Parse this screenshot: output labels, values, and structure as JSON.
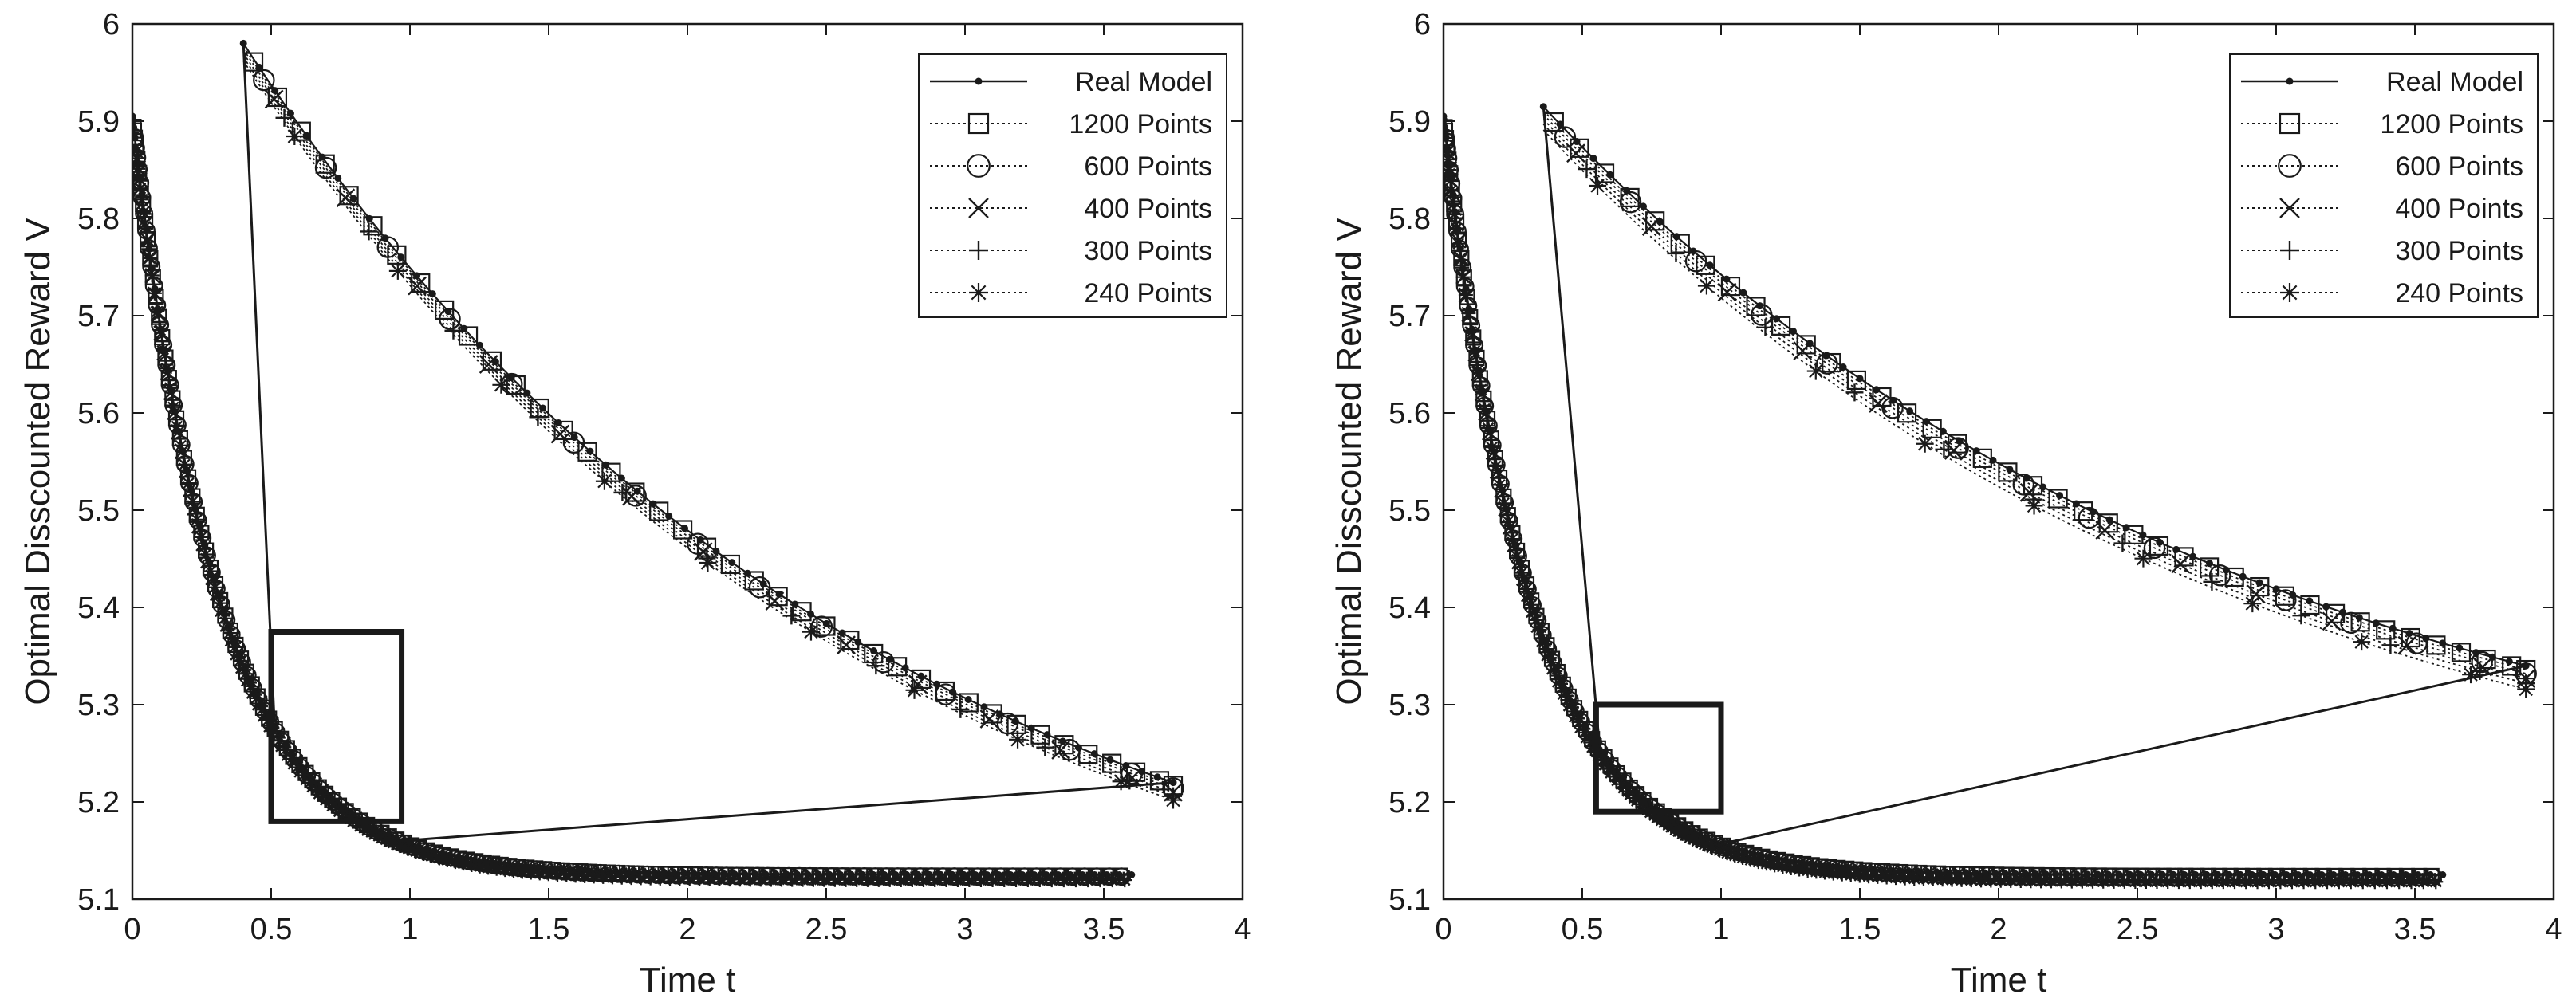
{
  "chart_data": [
    {
      "type": "line",
      "xlabel": "Time t",
      "ylabel": "Optimal Disscounted Reward V",
      "xlim": [
        0,
        4
      ],
      "ylim": [
        5.1,
        6
      ],
      "xticks": [
        "0",
        "0.5",
        "1",
        "1.5",
        "2",
        "2.5",
        "3",
        "3.5",
        "4"
      ],
      "yticks": [
        "5.1",
        "5.2",
        "5.3",
        "5.4",
        "5.5",
        "5.6",
        "5.7",
        "5.8",
        "5.9",
        "6"
      ],
      "legend_position": "top-right",
      "legend": [
        "Real Model",
        "1200 Points",
        "600 Points",
        "400 Points",
        "300 Points",
        "240 Points"
      ],
      "curve_model": {
        "asymptote": 5.125,
        "amplitude": 0.78,
        "rate": 3.2,
        "x_end": 3.6
      },
      "zoom_box": {
        "x": [
          0.5,
          0.97
        ],
        "y": [
          5.18,
          5.375
        ]
      },
      "inset": {
        "x": [
          0.4,
          3.75
        ],
        "y": [
          5.22,
          5.98
        ],
        "offsets": [
          0.0,
          -0.003,
          -0.006,
          -0.01,
          -0.014,
          -0.018
        ]
      }
    },
    {
      "type": "line",
      "xlabel": "Time t",
      "ylabel": "Optimal Disscounted Reward V",
      "xlim": [
        0,
        4
      ],
      "ylim": [
        5.1,
        6
      ],
      "xticks": [
        "0",
        "0.5",
        "1",
        "1.5",
        "2",
        "2.5",
        "3",
        "3.5",
        "4"
      ],
      "yticks": [
        "5.1",
        "5.2",
        "5.3",
        "5.4",
        "5.5",
        "5.6",
        "5.7",
        "5.8",
        "5.9",
        "6"
      ],
      "legend_position": "top-right",
      "legend": [
        "Real Model",
        "1200 Points",
        "600 Points",
        "400 Points",
        "300 Points",
        "240 Points"
      ],
      "curve_model": {
        "asymptote": 5.125,
        "amplitude": 0.78,
        "rate": 3.2,
        "x_end": 3.6
      },
      "zoom_box": {
        "x": [
          0.55,
          1.0
        ],
        "y": [
          5.19,
          5.3
        ]
      },
      "inset": {
        "x": [
          0.36,
          3.9
        ],
        "y": [
          5.34,
          5.915
        ],
        "offsets": [
          0.0,
          -0.004,
          -0.008,
          -0.013,
          -0.018,
          -0.024
        ]
      }
    }
  ]
}
